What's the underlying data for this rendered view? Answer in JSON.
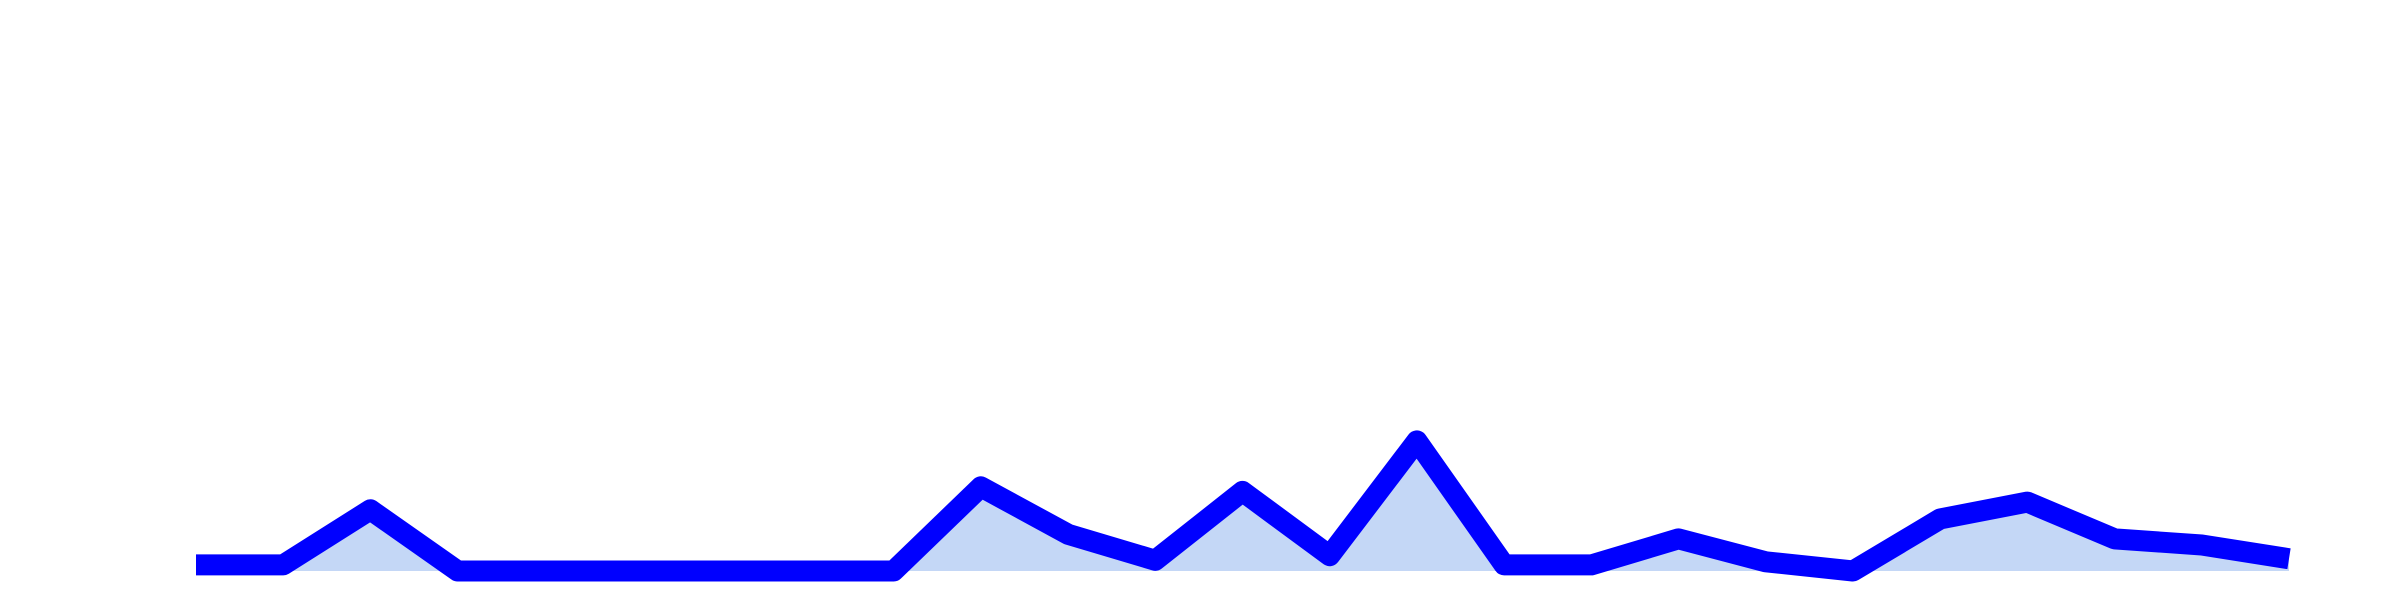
{
  "chart_data": {
    "type": "area",
    "categories": [
      null,
      null,
      null,
      null,
      null,
      null,
      null,
      null,
      null,
      null,
      null,
      null,
      null,
      null,
      null,
      null,
      null,
      null,
      null,
      null,
      null,
      null,
      null,
      null,
      null
    ],
    "series": [
      {
        "color": "#0000ff",
        "fill": "#c4d7f6",
        "values": [
          4,
          4,
          40,
          0,
          0,
          0,
          0,
          0,
          0,
          55,
          24,
          7,
          52,
          10,
          85,
          4,
          4,
          21,
          6,
          0,
          34,
          45,
          21,
          17,
          8
        ]
      }
    ],
    "ylim": [
      0,
      373
    ]
  }
}
